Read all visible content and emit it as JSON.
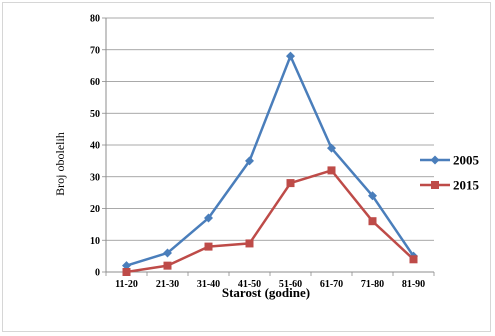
{
  "chart_data": {
    "type": "line",
    "categories": [
      "11-20",
      "21-30",
      "31-40",
      "41-50",
      "51-60",
      "61-70",
      "71-80",
      "81-90"
    ],
    "series": [
      {
        "name": "2005",
        "values": [
          2,
          6,
          17,
          35,
          68,
          39,
          24,
          5
        ],
        "color": "#4a7ebb",
        "marker": "diamond"
      },
      {
        "name": "2015",
        "values": [
          0,
          2,
          8,
          9,
          28,
          32,
          16,
          4
        ],
        "color": "#be4b48",
        "marker": "square"
      }
    ],
    "xlabel": "Starost (godine)",
    "ylabel": "Broj obolelih",
    "ylim": [
      0,
      80
    ],
    "yticks": [
      0,
      10,
      20,
      30,
      40,
      50,
      60,
      70,
      80
    ],
    "grid": true,
    "legend_position": "right"
  }
}
